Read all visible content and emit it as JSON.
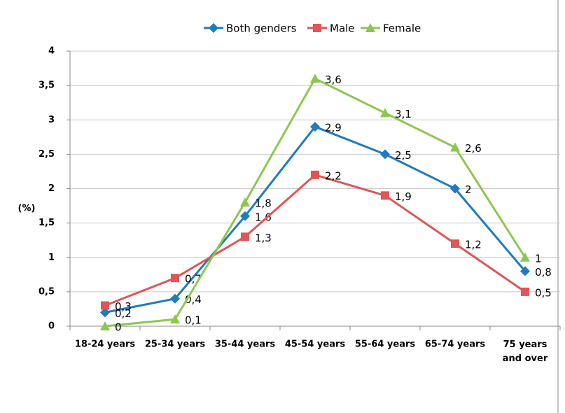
{
  "chart_data": {
    "type": "line",
    "y_label": "(%)",
    "categories": [
      "18-24 years",
      "25-34 years",
      "35-44 years",
      "45-54 years",
      "55-64 years",
      "65-74 years",
      "75 years\nand over"
    ],
    "series": [
      {
        "name": "Both genders",
        "color": "#1f7bc1",
        "marker": "diamond",
        "values": [
          0.2,
          0.4,
          1.6,
          2.9,
          2.5,
          2,
          0.8
        ],
        "value_labels": [
          "0,2",
          "0,4",
          "1,6",
          "2,9",
          "2,5",
          "2",
          "0,8"
        ]
      },
      {
        "name": "Male",
        "color": "#e05555",
        "marker": "square",
        "values": [
          0.3,
          0.7,
          1.3,
          2.2,
          1.9,
          1.2,
          0.5
        ],
        "value_labels": [
          "0,3",
          "0,7",
          "1,3",
          "2,2",
          "1,9",
          "1,2",
          "0,5"
        ]
      },
      {
        "name": "Female",
        "color": "#8cc850",
        "marker": "triangle",
        "values": [
          0,
          0.1,
          1.8,
          3.6,
          3.1,
          2.6,
          1
        ],
        "value_labels": [
          "0",
          "0,1",
          "1,8",
          "3,6",
          "3,1",
          "2,6",
          "1"
        ]
      }
    ],
    "ylim": [
      0,
      4
    ],
    "yticks": [
      0,
      {
        "value": 0.5,
        "label": "0,5"
      },
      1,
      {
        "value": 1.5,
        "label": "1,5"
      },
      2,
      {
        "value": 2.5,
        "label": "2,5"
      },
      3,
      {
        "value": 3.5,
        "label": "3,5"
      },
      4
    ],
    "grid": true,
    "legend": "top"
  }
}
